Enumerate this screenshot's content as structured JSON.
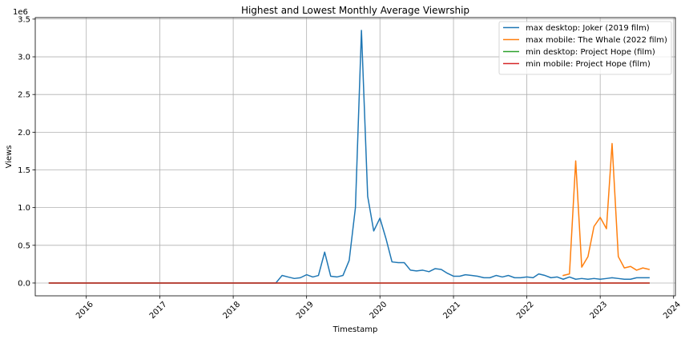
{
  "chart_data": {
    "type": "line",
    "title": "Highest and Lowest Monthly Average Viewrship",
    "xlabel": "Timestamp",
    "ylabel": "Views",
    "y_offset_text": "1e6",
    "ylim": [
      -0.17,
      3.52
    ],
    "y_ticks": [
      0.0,
      0.5,
      1.0,
      1.5,
      2.0,
      2.5,
      3.0,
      3.5
    ],
    "y_tick_labels": [
      "0.0",
      "0.5",
      "1.0",
      "1.5",
      "2.0",
      "2.5",
      "3.0",
      "3.5"
    ],
    "xlim": [
      "2015-04-22",
      "2024-01-10"
    ],
    "x_ticks": [
      "2016-01-01",
      "2017-01-01",
      "2018-01-01",
      "2019-01-01",
      "2020-01-01",
      "2021-01-01",
      "2022-01-01",
      "2023-01-01",
      "2024-01-01"
    ],
    "x_tick_labels": [
      "2016",
      "2017",
      "2018",
      "2019",
      "2020",
      "2021",
      "2022",
      "2023",
      "2024"
    ],
    "grid": true,
    "legend_position": "top-right",
    "series": [
      {
        "name": "max desktop: Joker (2019 film)",
        "color": "#1f77b4",
        "x": [
          "2015-07-01",
          "2015-10-01",
          "2016-01-01",
          "2016-04-01",
          "2016-07-01",
          "2016-10-01",
          "2017-01-01",
          "2017-04-01",
          "2017-07-01",
          "2017-10-01",
          "2018-01-01",
          "2018-04-01",
          "2018-07-01",
          "2018-08-01",
          "2018-09-01",
          "2018-10-01",
          "2018-11-01",
          "2018-12-01",
          "2019-01-01",
          "2019-02-01",
          "2019-03-01",
          "2019-04-01",
          "2019-05-01",
          "2019-06-01",
          "2019-07-01",
          "2019-08-01",
          "2019-09-01",
          "2019-10-01",
          "2019-11-01",
          "2019-12-01",
          "2020-01-01",
          "2020-02-01",
          "2020-03-01",
          "2020-04-01",
          "2020-05-01",
          "2020-06-01",
          "2020-07-01",
          "2020-08-01",
          "2020-09-01",
          "2020-10-01",
          "2020-11-01",
          "2020-12-01",
          "2021-01-01",
          "2021-02-01",
          "2021-03-01",
          "2021-04-01",
          "2021-05-01",
          "2021-06-01",
          "2021-07-01",
          "2021-08-01",
          "2021-09-01",
          "2021-10-01",
          "2021-11-01",
          "2021-12-01",
          "2022-01-01",
          "2022-02-01",
          "2022-03-01",
          "2022-04-01",
          "2022-05-01",
          "2022-06-01",
          "2022-07-01",
          "2022-08-01",
          "2022-09-01",
          "2022-10-01",
          "2022-11-01",
          "2022-12-01",
          "2023-01-01",
          "2023-02-01",
          "2023-03-01",
          "2023-04-01",
          "2023-05-01",
          "2023-06-01",
          "2023-07-01",
          "2023-08-01",
          "2023-09-01"
        ],
        "values": [
          0,
          0,
          0,
          0,
          0,
          0,
          0,
          0,
          0,
          0,
          0,
          0,
          0,
          0,
          0.1,
          0.08,
          0.06,
          0.07,
          0.11,
          0.08,
          0.1,
          0.41,
          0.09,
          0.08,
          0.1,
          0.3,
          1.0,
          3.35,
          1.15,
          0.69,
          0.86,
          0.58,
          0.28,
          0.27,
          0.27,
          0.17,
          0.16,
          0.17,
          0.15,
          0.19,
          0.18,
          0.13,
          0.09,
          0.09,
          0.11,
          0.1,
          0.09,
          0.07,
          0.07,
          0.1,
          0.08,
          0.1,
          0.07,
          0.07,
          0.08,
          0.07,
          0.12,
          0.1,
          0.07,
          0.08,
          0.05,
          0.08,
          0.05,
          0.06,
          0.05,
          0.06,
          0.05,
          0.06,
          0.07,
          0.06,
          0.05,
          0.05,
          0.07,
          0.07,
          0.07
        ]
      },
      {
        "name": "max mobile: The Whale (2022 film)",
        "color": "#ff7f0e",
        "x": [
          "2022-07-01",
          "2022-08-01",
          "2022-09-01",
          "2022-10-01",
          "2022-11-01",
          "2022-12-01",
          "2023-01-01",
          "2023-02-01",
          "2023-03-01",
          "2023-04-01",
          "2023-05-01",
          "2023-06-01",
          "2023-07-01",
          "2023-08-01",
          "2023-09-01"
        ],
        "values": [
          0.1,
          0.12,
          1.62,
          0.21,
          0.35,
          0.75,
          0.87,
          0.72,
          1.85,
          0.35,
          0.2,
          0.22,
          0.17,
          0.2,
          0.18
        ]
      },
      {
        "name": "min desktop: Project Hope (film)",
        "color": "#2ca02c",
        "x": [
          "2015-07-01",
          "2023-09-01"
        ],
        "values": [
          0,
          0
        ]
      },
      {
        "name": "min mobile: Project Hope (film)",
        "color": "#d62728",
        "x": [
          "2015-07-01",
          "2023-09-01"
        ],
        "values": [
          0,
          0
        ]
      }
    ]
  }
}
